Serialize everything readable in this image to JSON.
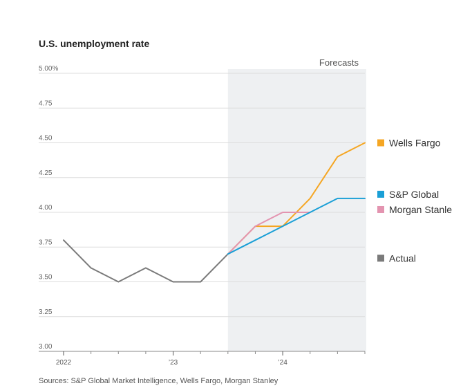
{
  "chart_data": {
    "type": "line",
    "title": "U.S. unemployment rate",
    "source": "Sources: S&P Global Market Intelligence, Wells Fargo, Morgan Stanley",
    "forecast_label": "Forecasts",
    "forecast_start": 2023.5,
    "xlim": [
      2021.9,
      2024.75
    ],
    "ylim": [
      3.0,
      5.0
    ],
    "y_ticks": [
      {
        "value": 5.0,
        "label": "5.00%"
      },
      {
        "value": 4.75,
        "label": "4.75"
      },
      {
        "value": 4.5,
        "label": "4.50"
      },
      {
        "value": 4.25,
        "label": "4.25"
      },
      {
        "value": 4.0,
        "label": "4.00"
      },
      {
        "value": 3.75,
        "label": "3.75"
      },
      {
        "value": 3.5,
        "label": "3.50"
      },
      {
        "value": 3.25,
        "label": "3.25"
      },
      {
        "value": 3.0,
        "label": "3.00"
      }
    ],
    "x_ticks": [
      {
        "value": 2022,
        "label": "2022"
      },
      {
        "value": 2023,
        "label": "’23"
      },
      {
        "value": 2024,
        "label": "’24"
      }
    ],
    "x_minor_ticks": [
      2022.25,
      2022.5,
      2022.75,
      2023.25,
      2023.5,
      2023.75,
      2024.25,
      2024.5,
      2024.75
    ],
    "grid": true,
    "legend_placement": "right",
    "series": [
      {
        "name": "Actual",
        "color": "#7a7a7a",
        "points": [
          [
            2022,
            3.8
          ],
          [
            2022.25,
            3.6
          ],
          [
            2022.5,
            3.5
          ],
          [
            2022.75,
            3.6
          ],
          [
            2023,
            3.5
          ],
          [
            2023.25,
            3.5
          ],
          [
            2023.5,
            3.7
          ]
        ]
      },
      {
        "name": "Wells Fargo",
        "color": "#f5a623",
        "points": [
          [
            2023.5,
            3.7
          ],
          [
            2023.75,
            3.9
          ],
          [
            2024,
            3.9
          ],
          [
            2024.25,
            4.1
          ],
          [
            2024.5,
            4.4
          ],
          [
            2024.75,
            4.5
          ]
        ]
      },
      {
        "name": "Morgan Stanle",
        "color": "#e394b0",
        "points": [
          [
            2023.5,
            3.7
          ],
          [
            2023.75,
            3.9
          ],
          [
            2024,
            4.0
          ],
          [
            2024.25,
            4.0
          ]
        ]
      },
      {
        "name": "S&P Global",
        "color": "#1a9fd6",
        "points": [
          [
            2023.5,
            3.7
          ],
          [
            2023.75,
            3.8
          ],
          [
            2024,
            3.9
          ],
          [
            2024.25,
            4.0
          ],
          [
            2024.5,
            4.1
          ],
          [
            2024.75,
            4.1
          ]
        ]
      }
    ],
    "legend": [
      {
        "name": "Wells Fargo",
        "color": "#f5a623",
        "at": 4.5
      },
      {
        "name": "S&P Global",
        "color": "#1a9fd6",
        "at": 4.13
      },
      {
        "name": "Morgan Stanle",
        "color": "#e394b0",
        "at": 4.02
      },
      {
        "name": "Actual",
        "color": "#7a7a7a",
        "at": 3.67
      }
    ]
  }
}
